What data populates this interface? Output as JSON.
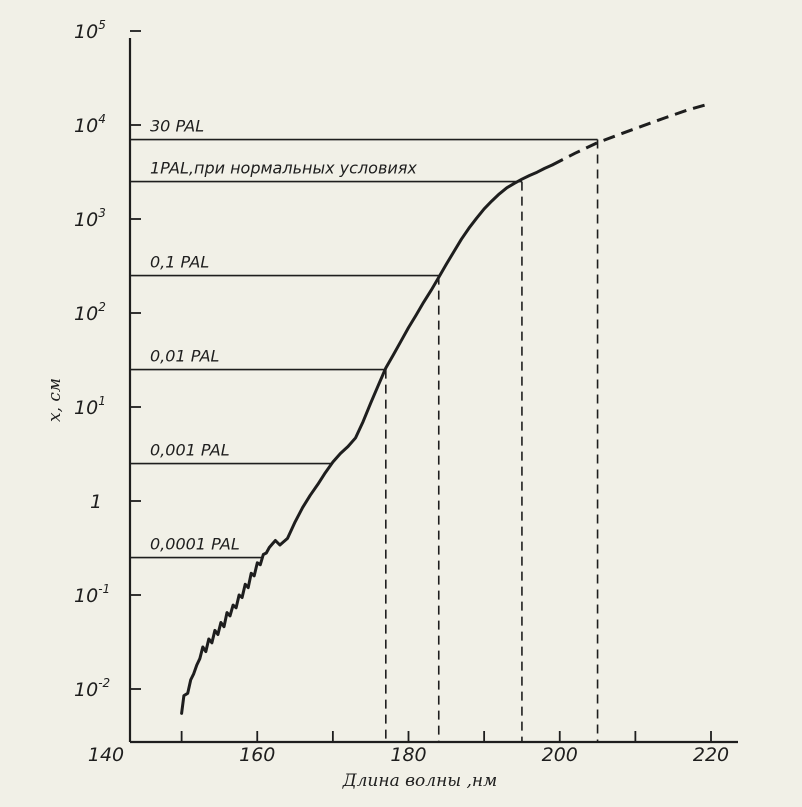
{
  "chart_data": {
    "type": "line",
    "xlabel": "Длина волны ,нм",
    "ylabel": "x, см",
    "xlim": [
      140,
      223
    ],
    "ylim": [
      0.005,
      180000
    ],
    "yscale": "log",
    "x_ticks": [
      {
        "value": 140,
        "label": "140"
      },
      {
        "value": 160,
        "label": "160"
      },
      {
        "value": 180,
        "label": "180"
      },
      {
        "value": 200,
        "label": "200"
      },
      {
        "value": 220,
        "label": "220"
      }
    ],
    "x_minor_ticks": [
      150,
      170,
      190,
      210
    ],
    "y_ticks": [
      {
        "value": 0.01,
        "base": "10",
        "exp": "-2"
      },
      {
        "value": 0.1,
        "base": "10",
        "exp": "-1"
      },
      {
        "value": 1,
        "base": "1",
        "exp": ""
      },
      {
        "value": 10,
        "base": "10",
        "exp": "1"
      },
      {
        "value": 100,
        "base": "10",
        "exp": "2"
      },
      {
        "value": 1000,
        "base": "10",
        "exp": "3"
      },
      {
        "value": 10000,
        "base": "10",
        "exp": "4"
      },
      {
        "value": 100000,
        "base": "10",
        "exp": "5"
      }
    ],
    "series": [
      {
        "style": "solid",
        "x": [
          150.0,
          150.3,
          150.8,
          151.2,
          151.6,
          152.0,
          152.4,
          152.8,
          153.2,
          153.6,
          154.0,
          154.4,
          154.8,
          155.2,
          155.6,
          156.0,
          156.4,
          156.8,
          157.2,
          157.6,
          158.0,
          158.4,
          158.8,
          159.2,
          159.6,
          160.0,
          160.4,
          160.8,
          161.2,
          161.6,
          162.0,
          162.4,
          163.0,
          164.0,
          165.0,
          166.0,
          167.0,
          168.0,
          169.0,
          170.0,
          171.0,
          172.0,
          173.0,
          174.0,
          175.0,
          176.0,
          177.0,
          178.0,
          179.0,
          180.0,
          181.0,
          182.0,
          183.0,
          184.0,
          185.0,
          186.0,
          187.0,
          188.0,
          189.0,
          190.0,
          191.0,
          192.0,
          193.0,
          194.0,
          195.0,
          196.0,
          197.0,
          198.0,
          199.0
        ],
        "y": [
          0.0055,
          0.0085,
          0.009,
          0.0125,
          0.0145,
          0.018,
          0.021,
          0.028,
          0.025,
          0.034,
          0.031,
          0.042,
          0.038,
          0.051,
          0.046,
          0.065,
          0.06,
          0.078,
          0.073,
          0.1,
          0.094,
          0.13,
          0.12,
          0.17,
          0.16,
          0.22,
          0.21,
          0.27,
          0.28,
          0.32,
          0.35,
          0.38,
          0.34,
          0.4,
          0.6,
          0.85,
          1.15,
          1.5,
          2.0,
          2.6,
          3.2,
          3.8,
          4.7,
          7.0,
          11.0,
          17.0,
          26.0,
          36.0,
          50.0,
          70.0,
          95.0,
          130.0,
          175.0,
          240.0,
          330.0,
          450.0,
          610.0,
          800.0,
          1020.0,
          1280.0,
          1550.0,
          1850.0,
          2150.0,
          2400.0,
          2650.0,
          2900.0,
          3150.0,
          3450.0,
          3750.0
        ]
      },
      {
        "style": "dashed",
        "x": [
          199.0,
          202.0,
          205.0,
          208.0,
          211.0,
          214.0,
          217.0,
          220.0
        ],
        "y": [
          3750.0,
          5000.0,
          6500.0,
          8000.0,
          9800.0,
          12000.0,
          14500.0,
          17000.0
        ]
      }
    ],
    "reference_levels": [
      {
        "label": "30 PAL",
        "y": 7000,
        "x_drop": 205
      },
      {
        "label": "1PAL,при нормальных условиях",
        "y": 2500,
        "x_drop": 195
      },
      {
        "label": "0,1 PAL",
        "y": 250,
        "x_drop": 184
      },
      {
        "label": "0,01 PAL",
        "y": 25,
        "x_drop": 177
      },
      {
        "label": "0,001 PAL",
        "y": 2.5,
        "x_drop": null
      },
      {
        "label": "0,0001 PAL",
        "y": 0.25,
        "x_drop": null
      }
    ]
  }
}
